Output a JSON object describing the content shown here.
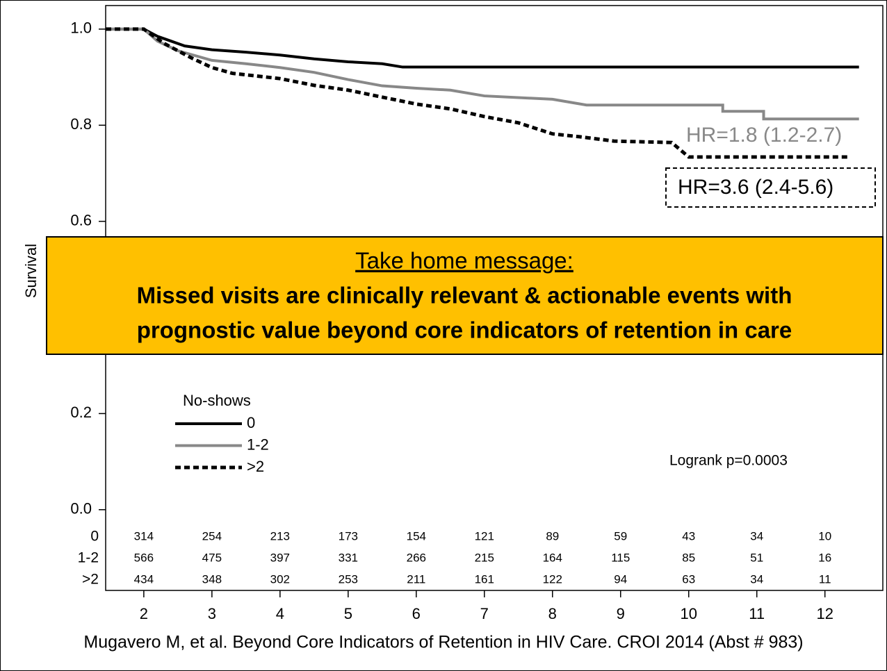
{
  "chart_data": {
    "type": "line",
    "y_label": "Survival",
    "xlim": [
      1.44,
      12.85
    ],
    "ylim": [
      -0.168,
      1.049
    ],
    "xticks": [
      2,
      3,
      4,
      5,
      6,
      7,
      8,
      9,
      10,
      11,
      12
    ],
    "yticks": [
      {
        "value": 0,
        "label": "0.0"
      },
      {
        "value": 0.2,
        "label": "0.2"
      },
      {
        "value": 0.6,
        "label": "0.6"
      },
      {
        "value": 0.8,
        "label": "0.8"
      },
      {
        "value": 1,
        "label": "1.0"
      }
    ],
    "legend_title": "No-shows",
    "legend_position": "lower left",
    "series": [
      {
        "name": "0",
        "color": "#000000",
        "line_style": "solid",
        "x": [
          1.44,
          2.0,
          2.2,
          2.4,
          2.6,
          3.0,
          3.5,
          4.0,
          4.5,
          5.0,
          5.5,
          5.8,
          12.5
        ],
        "values": [
          1.0,
          1.0,
          0.985,
          0.975,
          0.965,
          0.957,
          0.952,
          0.946,
          0.938,
          0.932,
          0.928,
          0.921,
          0.921
        ]
      },
      {
        "name": "1-2",
        "color": "#888888",
        "line_style": "solid",
        "x": [
          1.44,
          2.0,
          2.2,
          2.5,
          3.0,
          3.5,
          4.0,
          4.5,
          5.0,
          5.5,
          6.0,
          6.5,
          7.0,
          8.0,
          8.5,
          10.5,
          10.5,
          11.1,
          11.1,
          12.5
        ],
        "values": [
          1.0,
          1.0,
          0.975,
          0.955,
          0.935,
          0.928,
          0.92,
          0.91,
          0.895,
          0.882,
          0.877,
          0.873,
          0.861,
          0.854,
          0.842,
          0.842,
          0.829,
          0.829,
          0.813,
          0.813
        ]
      },
      {
        "name": ">2",
        "color": "#000000",
        "line_style": "dashed",
        "x": [
          1.44,
          2.0,
          2.3,
          2.7,
          3.0,
          3.3,
          4.0,
          4.5,
          5.0,
          6.0,
          6.5,
          7.0,
          7.5,
          8.0,
          8.4,
          8.9,
          9.75,
          10.0,
          12.36
        ],
        "values": [
          1.0,
          1.0,
          0.97,
          0.94,
          0.92,
          0.908,
          0.897,
          0.883,
          0.873,
          0.844,
          0.834,
          0.818,
          0.805,
          0.782,
          0.776,
          0.767,
          0.764,
          0.734,
          0.734
        ]
      }
    ],
    "annotations": {
      "hr_gray": "HR=1.8 (1.2-2.7)",
      "hr_dashed": "HR=3.6 (2.4-5.6)",
      "logrank": "Logrank p=0.0003"
    },
    "message": {
      "title": "Take home message:",
      "lines": [
        "Missed visits are clinically relevant & actionable events with",
        "prognostic value beyond core indicators of retention in care"
      ]
    },
    "risk_table": {
      "rows": [
        {
          "label": "0",
          "values": [
            "314",
            "254",
            "213",
            "173",
            "154",
            "121",
            "89",
            "59",
            "43",
            "34",
            "10"
          ]
        },
        {
          "label": "1-2",
          "values": [
            "566",
            "475",
            "397",
            "331",
            "266",
            "215",
            "164",
            "115",
            "85",
            "51",
            "16"
          ]
        },
        {
          "label": ">2",
          "values": [
            "434",
            "348",
            "302",
            "253",
            "211",
            "161",
            "122",
            "94",
            "63",
            "34",
            "11"
          ]
        }
      ]
    },
    "source": "Mugavero M, et al. Beyond Core Indicators of Retention in HIV Care.  CROI 2014 (Abst # 983)"
  }
}
